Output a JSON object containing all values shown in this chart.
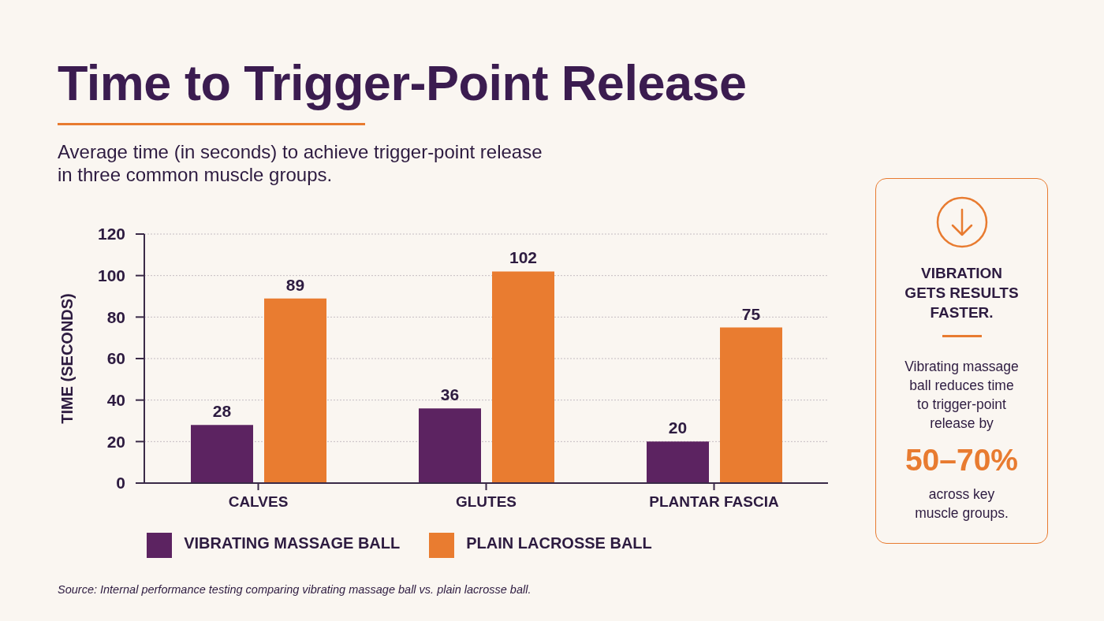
{
  "chart_data": [
    {
      "type": "bar",
      "title": "Time to Trigger-Point Release",
      "subtitle": "Average time (in seconds) to achieve trigger-point release in three common muscle groups.",
      "ylabel": "TIME (SECONDS)",
      "categories": [
        "CALVES",
        "GLUTES",
        "PLANTAR FASCIA"
      ],
      "series": [
        {
          "name": "VIBRATING MASSAGE BALL",
          "color": "#5c2361",
          "values": [
            28,
            36,
            20
          ]
        },
        {
          "name": "PLAIN LACROSSE BALL",
          "color": "#e97c30",
          "values": [
            89,
            102,
            75
          ]
        }
      ],
      "ylim": [
        0,
        120
      ],
      "yticks": [
        0,
        20,
        40,
        60,
        80,
        100,
        120
      ],
      "grid": "y",
      "legend": "bottom",
      "data_labels": true,
      "annotations": [
        "Source: Internal performance testing comparing vibrating massage ball vs. plain lacrosse ball."
      ]
    },
    {
      "type": "other",
      "title": "VIBRATION GETS RESULTS FASTER.",
      "annotations": [
        "Vibrating massage ball reduces time to trigger-point release by",
        "50–70%",
        "across key muscle groups."
      ]
    }
  ]
}
